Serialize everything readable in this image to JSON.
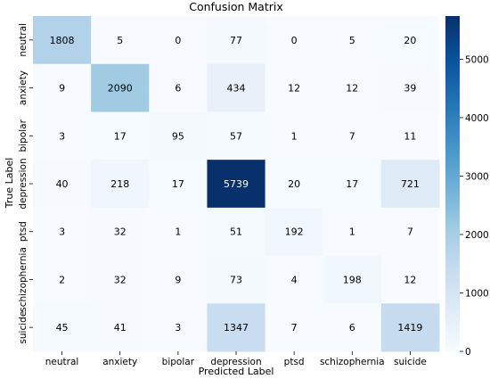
{
  "chart_data": {
    "type": "heatmap",
    "title": "Confusion Matrix",
    "xlabel": "Predicted Label",
    "ylabel": "True Label",
    "x_categories": [
      "neutral",
      "anxiety",
      "bipolar",
      "depression",
      "ptsd",
      "schizophernia",
      "suicide"
    ],
    "y_categories": [
      "neutral",
      "anxiety",
      "bipolar",
      "depression",
      "ptsd",
      "schizophernia",
      "suicide"
    ],
    "values": [
      [
        1808,
        5,
        0,
        77,
        0,
        5,
        20
      ],
      [
        9,
        2090,
        6,
        434,
        12,
        12,
        39
      ],
      [
        3,
        17,
        95,
        57,
        1,
        7,
        11
      ],
      [
        40,
        218,
        17,
        5739,
        20,
        17,
        721
      ],
      [
        3,
        32,
        1,
        51,
        192,
        1,
        7
      ],
      [
        2,
        32,
        9,
        73,
        4,
        198,
        12
      ],
      [
        45,
        41,
        3,
        1347,
        7,
        6,
        1419
      ]
    ],
    "colormap": "Blues",
    "colormap_colors": [
      "#f7fbff",
      "#deebf7",
      "#c6dbef",
      "#9ecae1",
      "#6baed6",
      "#4292c6",
      "#2171b5",
      "#08519c",
      "#08306b"
    ],
    "colorbar_range": [
      0,
      5739
    ],
    "colorbar_ticks": [
      0,
      1000,
      2000,
      3000,
      4000,
      5000
    ]
  }
}
